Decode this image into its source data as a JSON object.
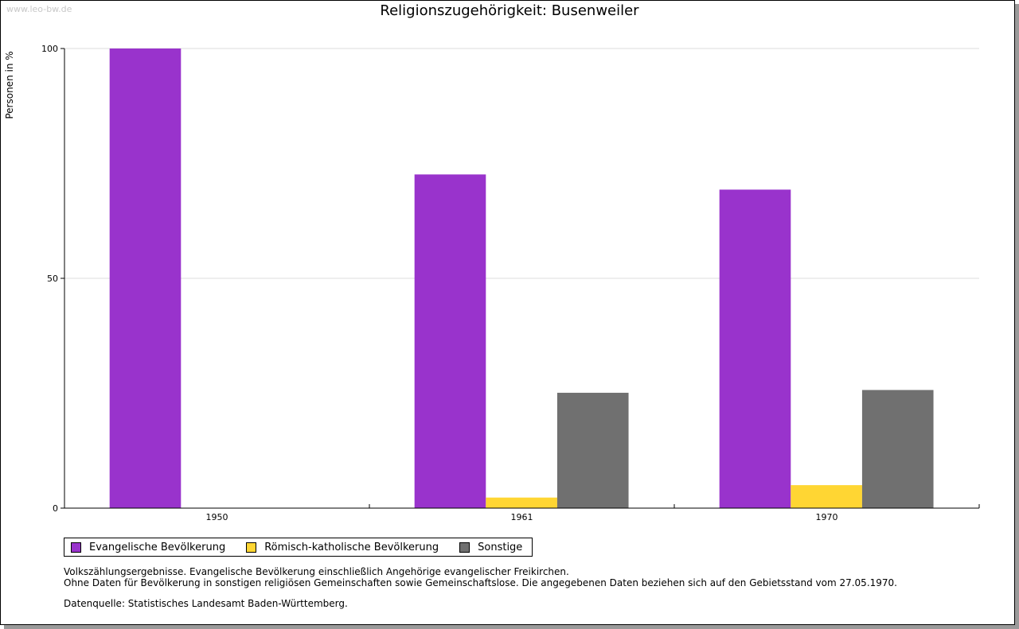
{
  "watermark": "www.leo-bw.de",
  "notes": {
    "line1": "Volkszählungsergebnisse. Evangelische Bevölkerung einschließlich Angehörige evangelischer Freikirchen.",
    "line2": "Ohne Daten für Bevölkerung in sonstigen religiösen Gemeinschaften sowie Gemeinschaftslose. Die angegebenen Daten beziehen sich auf den Gebietsstand vom 27.05.1970.",
    "source": "Datenquelle: Statistisches Landesamt Baden-Württemberg."
  },
  "chart_data": {
    "type": "bar",
    "title": "Religionszugehörigkeit: Busenweiler",
    "xlabel": "",
    "ylabel": "Personen in %",
    "categories": [
      "1950",
      "1961",
      "1970"
    ],
    "ylim": [
      0,
      100
    ],
    "yticks": [
      0,
      50,
      100
    ],
    "grid": true,
    "legend_position": "bottom-left",
    "series": [
      {
        "name": "Evangelische Bevölkerung",
        "color": "#9933cc",
        "values": [
          100,
          72.6,
          69.3
        ]
      },
      {
        "name": "Römisch-katholische Bevölkerung",
        "color": "#ffd633",
        "values": [
          0,
          2.3,
          5.0
        ]
      },
      {
        "name": "Sonstige",
        "color": "#707070",
        "values": [
          0,
          25.1,
          25.7
        ]
      }
    ]
  }
}
